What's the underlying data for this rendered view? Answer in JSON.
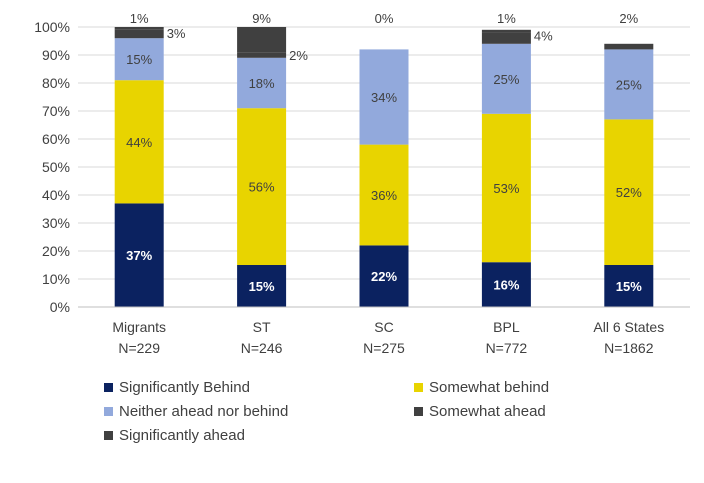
{
  "chart_data": {
    "type": "bar",
    "stacked": true,
    "categories": [
      [
        "Migrants",
        "N=229"
      ],
      [
        "ST",
        "N=246"
      ],
      [
        "SC",
        "N=275"
      ],
      [
        "BPL",
        "N=772"
      ],
      [
        "All 6 States",
        "N=1862"
      ]
    ],
    "ylim": [
      0,
      100
    ],
    "yticks": [
      "0%",
      "10%",
      "20%",
      "30%",
      "40%",
      "50%",
      "60%",
      "70%",
      "80%",
      "90%",
      "100%"
    ],
    "grid": true,
    "legend_position": "bottom",
    "series": [
      {
        "name": "Significantly Behind",
        "color": "#0b2260",
        "label_color": "#ffffff",
        "values": [
          37,
          15,
          22,
          16,
          15
        ]
      },
      {
        "name": "Somewhat behind",
        "color": "#e8d400",
        "label_color": "#404040",
        "values": [
          44,
          56,
          36,
          53,
          52
        ]
      },
      {
        "name": "Neither ahead nor behind",
        "color": "#92a9dc",
        "label_color": "#404040",
        "values": [
          15,
          18,
          34,
          25,
          25
        ]
      },
      {
        "name": "Somewhat ahead",
        "color": "#404040",
        "label_color": "#404040",
        "values": [
          3,
          2,
          0,
          4,
          0
        ]
      },
      {
        "name": "Significantly ahead",
        "color": "#404040",
        "label_color": "#404040",
        "values": [
          1,
          9,
          0,
          1,
          2
        ]
      }
    ],
    "data_labels": [
      [
        "37%",
        "44%",
        "15%",
        "3%",
        "1%"
      ],
      [
        "15%",
        "56%",
        "18%",
        "2%",
        "9%"
      ],
      [
        "22%",
        "36%",
        "34%",
        "",
        "0%"
      ],
      [
        "16%",
        "53%",
        "25%",
        "4%",
        "1%"
      ],
      [
        "15%",
        "52%",
        "25%",
        "",
        "2%"
      ]
    ]
  }
}
